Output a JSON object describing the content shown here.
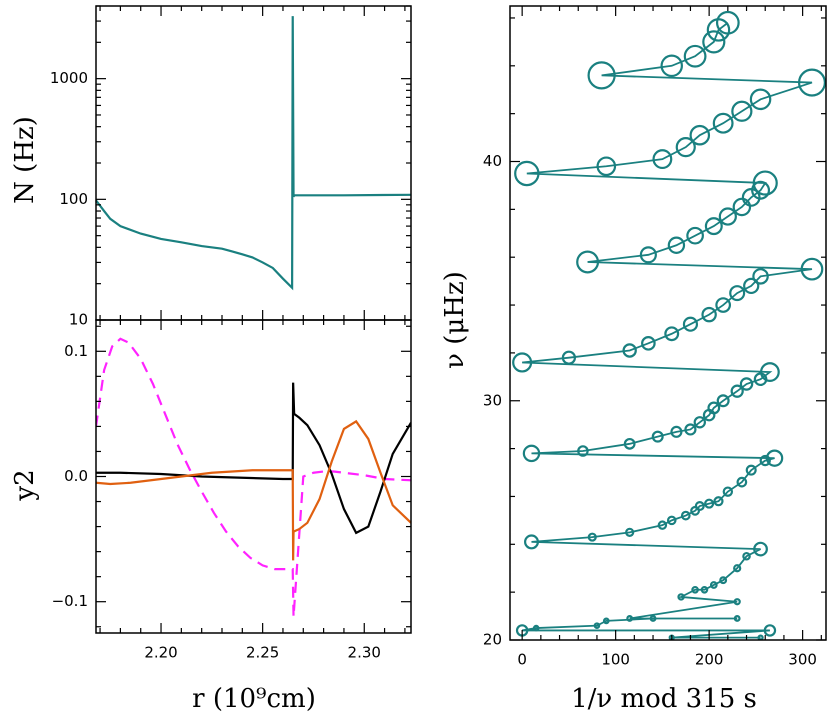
{
  "chart_data": [
    {
      "type": "line",
      "panel": "top-left",
      "ylabel": "N  (Hz)",
      "yscale": "log",
      "ylim": [
        10,
        4000
      ],
      "xlim": [
        2.168,
        2.323
      ],
      "yticks": [
        {
          "value": 1000,
          "label": "1000"
        },
        {
          "value": 100,
          "label": "100"
        },
        {
          "value": 10,
          "label": "10"
        }
      ],
      "color": "#1a8080",
      "series": [
        {
          "x": [
            2.168,
            2.172,
            2.175,
            2.18,
            2.19,
            2.2,
            2.21,
            2.22,
            2.23,
            2.235,
            2.24,
            2.245,
            2.25,
            2.255,
            2.26,
            2.2645,
            2.2648,
            2.2652,
            2.2655,
            2.27,
            2.29,
            2.323
          ],
          "y": [
            98,
            80,
            69,
            60,
            52,
            47,
            44,
            41,
            39,
            37,
            35,
            33,
            30,
            27,
            22,
            18.5,
            3300,
            105,
            108,
            108,
            108,
            109
          ]
        }
      ]
    },
    {
      "type": "line",
      "panel": "bottom-left",
      "ylabel": "y2",
      "xlabel": "r  (10⁹cm)",
      "xlim": [
        2.168,
        2.323
      ],
      "ylim": [
        -0.125,
        0.125
      ],
      "xticks": [
        {
          "value": 2.2,
          "label": "2.20"
        },
        {
          "value": 2.25,
          "label": "2.25"
        },
        {
          "value": 2.3,
          "label": "2.30"
        }
      ],
      "yticks": [
        {
          "value": 0.1,
          "label": "0.1"
        },
        {
          "value": 0.0,
          "label": "0.0"
        },
        {
          "value": -0.1,
          "label": "−0.1"
        }
      ],
      "series": [
        {
          "color": "#ff22ff",
          "dash": true,
          "x": [
            2.168,
            2.172,
            2.176,
            2.18,
            2.184,
            2.19,
            2.196,
            2.202,
            2.208,
            2.214,
            2.22,
            2.226,
            2.232,
            2.238,
            2.244,
            2.25,
            2.256,
            2.2648,
            2.2652,
            2.27,
            2.275,
            2.28,
            2.285,
            2.29,
            2.3,
            2.31,
            2.323
          ],
          "y": [
            0.04,
            0.085,
            0.104,
            0.11,
            0.107,
            0.094,
            0.074,
            0.05,
            0.026,
            0.006,
            -0.012,
            -0.029,
            -0.044,
            -0.056,
            -0.065,
            -0.071,
            -0.074,
            -0.074,
            -0.112,
            0.0,
            0.003,
            0.004,
            0.004,
            0.003,
            0.001,
            -0.002,
            -0.003
          ]
        },
        {
          "color": "#000000",
          "dash": false,
          "x": [
            2.168,
            2.18,
            2.2,
            2.22,
            2.24,
            2.26,
            2.2648,
            2.265,
            2.2655,
            2.268,
            2.272,
            2.278,
            2.284,
            2.29,
            2.296,
            2.302,
            2.308,
            2.314,
            2.323
          ],
          "y": [
            0.003,
            0.003,
            0.002,
            0.0,
            -0.001,
            -0.002,
            -0.002,
            0.075,
            0.05,
            0.047,
            0.041,
            0.025,
            0.002,
            -0.026,
            -0.045,
            -0.04,
            -0.012,
            0.018,
            0.043
          ]
        },
        {
          "color": "#e06010",
          "dash": false,
          "x": [
            2.168,
            2.175,
            2.185,
            2.195,
            2.205,
            2.215,
            2.225,
            2.235,
            2.245,
            2.255,
            2.2648,
            2.265,
            2.2652,
            2.268,
            2.272,
            2.278,
            2.284,
            2.29,
            2.296,
            2.302,
            2.308,
            2.314,
            2.323
          ],
          "y": [
            -0.005,
            -0.006,
            -0.005,
            -0.003,
            -0.001,
            0.001,
            0.003,
            0.004,
            0.005,
            0.005,
            0.005,
            -0.067,
            -0.044,
            -0.042,
            -0.037,
            -0.018,
            0.012,
            0.038,
            0.044,
            0.03,
            0.003,
            -0.023,
            -0.037
          ]
        }
      ]
    },
    {
      "type": "scatter",
      "panel": "right",
      "xlabel": "1/ν mod 315 s",
      "ylabel": "ν (μHz)",
      "xlim": [
        -13,
        325
      ],
      "ylim": [
        20,
        46.5
      ],
      "xticks": [
        {
          "value": 0,
          "label": "0"
        },
        {
          "value": 100,
          "label": "100"
        },
        {
          "value": 200,
          "label": "200"
        },
        {
          "value": 300,
          "label": "300"
        }
      ],
      "yticks": [
        {
          "value": 20,
          "label": "20"
        },
        {
          "value": 30,
          "label": "30"
        },
        {
          "value": 40,
          "label": "40"
        }
      ],
      "color": "#1a8080",
      "points": [
        [
          255,
          20.1
        ],
        [
          160,
          20.1
        ],
        [
          265,
          20.4
        ],
        [
          0,
          20.4
        ],
        [
          15,
          20.5
        ],
        [
          80,
          20.6
        ],
        [
          90,
          20.8
        ],
        [
          140,
          20.9
        ],
        [
          230,
          20.9
        ],
        [
          115,
          20.9
        ],
        [
          230,
          21.6
        ],
        [
          170,
          21.8
        ],
        [
          185,
          22.1
        ],
        [
          195,
          22.1
        ],
        [
          205,
          22.3
        ],
        [
          215,
          22.5
        ],
        [
          230,
          23.0
        ],
        [
          240,
          23.5
        ],
        [
          255,
          23.8
        ],
        [
          10,
          24.1
        ],
        [
          75,
          24.3
        ],
        [
          115,
          24.5
        ],
        [
          150,
          24.8
        ],
        [
          160,
          25.0
        ],
        [
          175,
          25.2
        ],
        [
          185,
          25.4
        ],
        [
          190,
          25.6
        ],
        [
          200,
          25.7
        ],
        [
          210,
          25.8
        ],
        [
          220,
          26.2
        ],
        [
          235,
          26.6
        ],
        [
          245,
          27.1
        ],
        [
          260,
          27.5
        ],
        [
          270,
          27.6
        ],
        [
          10,
          27.8
        ],
        [
          65,
          27.9
        ],
        [
          115,
          28.2
        ],
        [
          145,
          28.5
        ],
        [
          165,
          28.7
        ],
        [
          180,
          28.8
        ],
        [
          190,
          29.1
        ],
        [
          200,
          29.4
        ],
        [
          205,
          29.7
        ],
        [
          215,
          30.0
        ],
        [
          230,
          30.4
        ],
        [
          240,
          30.7
        ],
        [
          255,
          30.9
        ],
        [
          265,
          31.2
        ],
        [
          0,
          31.6
        ],
        [
          50,
          31.8
        ],
        [
          115,
          32.1
        ],
        [
          135,
          32.4
        ],
        [
          160,
          32.8
        ],
        [
          180,
          33.2
        ],
        [
          200,
          33.6
        ],
        [
          215,
          34.0
        ],
        [
          230,
          34.5
        ],
        [
          245,
          34.8
        ],
        [
          255,
          35.2
        ],
        [
          310,
          35.5
        ],
        [
          70,
          35.8
        ],
        [
          135,
          36.1
        ],
        [
          165,
          36.5
        ],
        [
          185,
          36.9
        ],
        [
          205,
          37.3
        ],
        [
          220,
          37.7
        ],
        [
          235,
          38.1
        ],
        [
          245,
          38.5
        ],
        [
          255,
          38.8
        ],
        [
          260,
          39.1
        ],
        [
          5,
          39.5
        ],
        [
          90,
          39.8
        ],
        [
          150,
          40.1
        ],
        [
          175,
          40.6
        ],
        [
          190,
          41.1
        ],
        [
          215,
          41.6
        ],
        [
          235,
          42.1
        ],
        [
          255,
          42.6
        ],
        [
          310,
          43.3
        ],
        [
          85,
          43.6
        ],
        [
          160,
          44.0
        ],
        [
          185,
          44.4
        ],
        [
          205,
          45.0
        ],
        [
          210,
          45.5
        ],
        [
          220,
          45.8
        ]
      ]
    }
  ]
}
